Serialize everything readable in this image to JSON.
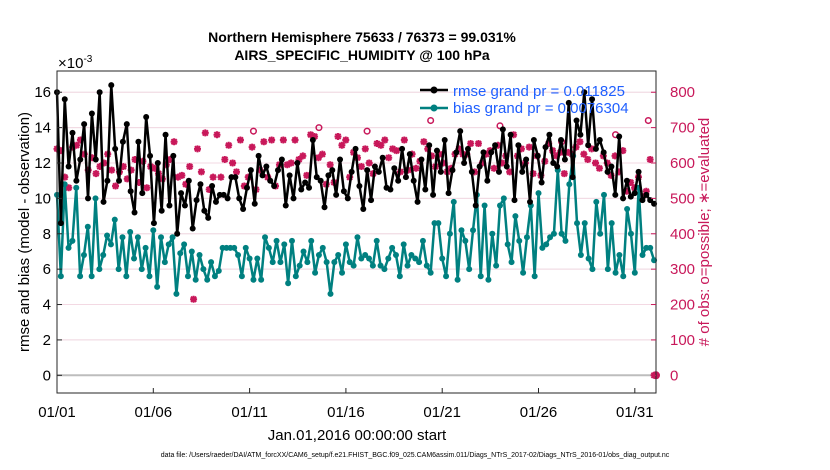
{
  "chart_data": {
    "type": "line",
    "title": "Northern Hemisphere 75633 / 76373 = 99.031%",
    "subtitle": "AIRS_SPECIFIC_HUMIDITY @ 100 hPa",
    "exponent_label": "×10",
    "exponent_power": "-3",
    "ylabel": "rmse and bias (model - observation)",
    "ylabel_right": "# of obs: o=possible; ∗=evaluated",
    "xlabel": "Jan.01,2016 00:00:00 start",
    "xlim": [
      1,
      32.1
    ],
    "ylim": [
      -1,
      17.2
    ],
    "ylim_right": [
      -50,
      860
    ],
    "x_ticks": [
      1,
      6,
      11,
      16,
      21,
      26,
      31
    ],
    "x_tick_labels": [
      "01/01",
      "01/06",
      "01/11",
      "01/16",
      "01/21",
      "01/26",
      "01/31"
    ],
    "y_ticks": [
      0,
      2,
      4,
      6,
      8,
      10,
      12,
      14,
      16
    ],
    "y_tick_labels": [
      "0",
      "2",
      "4",
      "6",
      "8",
      "10",
      "12",
      "14",
      "16"
    ],
    "y_right_ticks": [
      0,
      100,
      200,
      300,
      400,
      500,
      600,
      700,
      800
    ],
    "y_right_tick_labels": [
      "0",
      "100",
      "200",
      "300",
      "400",
      "500",
      "600",
      "700",
      "800"
    ],
    "legend": [
      {
        "label": "rmse grand pr = 0.011825",
        "color": "#000000"
      },
      {
        "label": "bias grand pr = 0.0076304",
        "color": "#008080"
      }
    ],
    "colors": {
      "rmse": "#000000",
      "bias": "#008080",
      "obs": "#c8185a"
    },
    "series": [
      {
        "name": "rmse",
        "values": [
          16.0,
          8.6,
          15.6,
          11.8,
          13.7,
          11.0,
          12.2,
          14.2,
          10.0,
          14.8,
          12.2,
          16.0,
          9.8,
          11.0,
          16.4,
          12.8,
          11.0,
          13.2,
          14.2,
          10.4,
          9.2,
          13.2,
          10.3,
          14.6,
          12.4,
          8.6,
          12.0,
          9.3,
          13.6,
          9.6,
          12.4,
          8.0,
          10.3,
          9.6,
          11.0,
          8.3,
          9.9,
          10.8,
          9.3,
          8.9,
          10.7,
          9.8,
          10.2,
          10.2,
          10.0,
          11.2,
          11.2,
          10.0,
          9.4,
          10.6,
          11.6,
          9.7,
          12.4,
          11.3,
          11.8,
          11.0,
          10.7,
          11.6,
          12.2,
          9.6,
          11.3,
          10.0,
          12.0,
          10.5,
          10.9,
          10.6,
          13.3,
          11.2,
          11.0,
          9.5,
          11.3,
          11.6,
          10.2,
          12.2,
          10.4,
          10.0,
          11.5,
          12.8,
          10.7,
          9.4,
          11.6,
          9.9,
          11.8,
          11.5,
          12.3,
          10.6,
          10.5,
          11.7,
          11.0,
          12.8,
          11.2,
          12.5,
          11.0,
          9.8,
          12.2,
          10.5,
          13.0,
          10.2,
          12.7,
          11.5,
          13.3,
          10.3,
          11.6,
          12.6,
          13.8,
          12.0,
          12.8,
          11.5,
          9.6,
          11.8,
          12.6,
          11.0,
          12.6,
          13.0,
          11.5,
          13.9,
          11.8,
          13.6,
          9.9,
          13.0,
          11.5,
          12.2,
          9.8,
          13.3,
          12.4,
          10.9,
          12.9,
          13.6,
          12.0,
          11.8,
          13.3,
          12.2,
          15.4,
          11.2,
          14.4,
          13.6,
          16.0,
          13.0,
          15.6,
          12.8,
          13.3,
          12.6,
          11.5,
          11.8,
          10.2,
          13.5,
          10.0,
          11.0,
          10.1,
          10.3,
          11.5,
          9.9,
          10.2,
          9.9,
          9.7
        ]
      },
      {
        "name": "bias",
        "values": [
          10.2,
          5.6,
          10.8,
          7.2,
          7.6,
          10.6,
          5.6,
          6.8,
          8.4,
          5.6,
          10.0,
          6.0,
          6.8,
          7.9,
          7.4,
          8.8,
          6.0,
          7.8,
          5.6,
          8.1,
          6.6,
          7.8,
          6.0,
          7.2,
          5.6,
          8.2,
          5.0,
          7.8,
          6.4,
          7.4,
          7.8,
          4.6,
          6.9,
          7.4,
          5.6,
          7.0,
          5.4,
          6.8,
          6.0,
          5.4,
          6.4,
          5.6,
          5.9,
          7.2,
          7.2,
          7.2,
          7.2,
          6.8,
          5.6,
          7.2,
          6.6,
          5.4,
          6.6,
          5.4,
          7.8,
          7.2,
          6.4,
          7.6,
          6.4,
          7.4,
          5.2,
          7.6,
          5.6,
          6.2,
          7.0,
          6.4,
          7.6,
          5.8,
          6.8,
          7.2,
          6.4,
          4.6,
          6.4,
          6.8,
          5.8,
          7.4,
          6.4,
          6.2,
          7.8,
          6.6,
          6.8,
          6.6,
          6.2,
          7.6,
          6.2,
          6.0,
          6.6,
          7.2,
          6.8,
          5.6,
          7.4,
          6.2,
          6.8,
          6.6,
          6.4,
          7.6,
          6.2,
          5.8,
          8.6,
          8.6,
          6.6,
          5.6,
          8.0,
          9.8,
          5.4,
          8.2,
          7.6,
          6.0,
          8.2,
          10.2,
          5.6,
          9.6,
          5.4,
          8.0,
          6.2,
          9.6,
          10.0,
          7.4,
          6.4,
          9.0,
          7.6,
          5.8,
          7.8,
          9.6,
          5.6,
          10.3,
          7.2,
          7.4,
          7.8,
          8.0,
          11.6,
          8.0,
          7.6,
          10.8,
          12.4,
          8.6,
          6.8,
          8.6,
          6.6,
          6.0,
          9.8,
          8.0,
          10.2,
          6.0,
          8.6,
          5.8,
          6.8,
          5.6,
          9.4,
          8.0,
          5.8,
          10.6,
          6.8,
          7.2,
          7.2,
          6.5
        ]
      },
      {
        "name": "obs evaluated",
        "values": [
          640,
          635,
          560,
          530,
          645,
          650,
          665,
          625,
          580,
          615,
          570,
          590,
          600,
          625,
          580,
          535,
          575,
          590,
          555,
          580,
          610,
          545,
          605,
          530,
          590,
          585,
          570,
          555,
          595,
          610,
          660,
          560,
          565,
          540,
          590,
          215,
          640,
          575,
          685,
          525,
          560,
          680,
          560,
          610,
          650,
          600,
          575,
          665,
          535,
          560,
          645,
          525,
          580,
          660,
          560,
          665,
          535,
          595,
          665,
          595,
          600,
          665,
          610,
          620,
          565,
          680,
          675,
          615,
          625,
          540,
          595,
          545,
          675,
          650,
          665,
          560,
          630,
          615,
          590,
          640,
          600,
          570,
          655,
          650,
          665,
          615,
          640,
          635,
          575,
          665,
          580,
          625,
          585,
          605,
          660,
          640,
          620,
          590,
          625,
          600,
          575,
          585,
          625,
          640,
          625,
          625,
          655,
          575,
          655,
          600,
          625,
          635,
          585,
          650,
          600,
          620,
          575,
          680,
          620,
          640,
          600,
          645,
          570,
          620,
          565,
          605,
          655,
          635,
          620,
          630,
          570,
          630,
          625,
          645,
          660,
          625,
          610,
          640,
          600,
          585,
          620,
          600,
          565,
          620,
          575,
          635,
          520,
          545,
          530,
          560,
          505,
          520,
          610,
          0
        ]
      },
      {
        "name": "obs possible",
        "values": [
          690,
          700,
          690,
          720,
          705,
          660,
          680,
          720
        ]
      }
    ],
    "footnote": "data file: /Users/raeder/DAI/ATM_forcXX/CAM6_setup/f.e21.FHIST_BGC.f09_025.CAM6assim.011/Diags_NTrS_2017-02/Diags_NTrS_2016-01/obs_diag_output.nc"
  }
}
